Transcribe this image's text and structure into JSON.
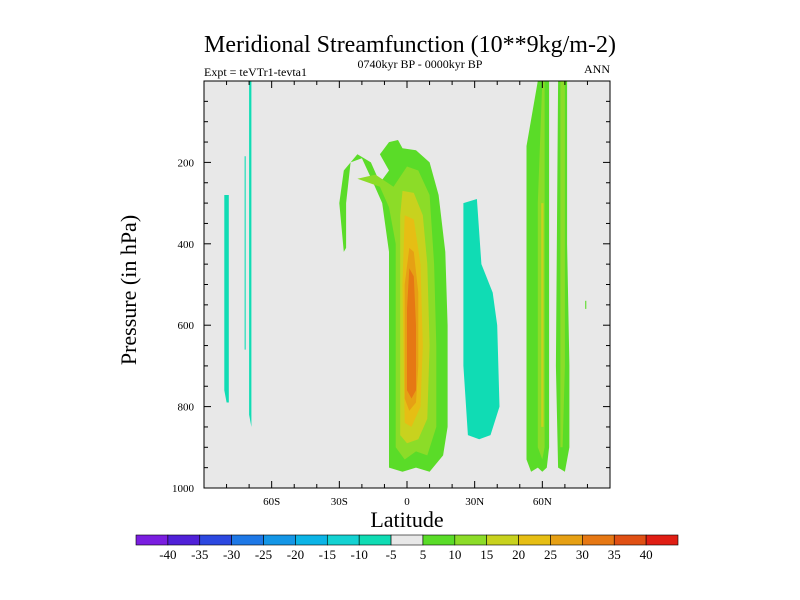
{
  "chart_data": {
    "type": "contour",
    "title": "Meridional Streamfunction (10**9kg/m-2)",
    "left_subtitle": "Expt = teVTr1-tevta1",
    "center_subtitle": "0740kyr BP - 0000kyr BP",
    "right_subtitle": "ANN",
    "xlabel": "Latitude",
    "ylabel": "Pressure (in hPa)",
    "xlim": [
      -90,
      90
    ],
    "ylim": [
      1000,
      0
    ],
    "x_ticks": [
      {
        "value": -60,
        "label": "60S"
      },
      {
        "value": -30,
        "label": "30S"
      },
      {
        "value": 0,
        "label": "0"
      },
      {
        "value": 30,
        "label": "30N"
      },
      {
        "value": 60,
        "label": "60N"
      }
    ],
    "y_ticks": [
      {
        "value": 200,
        "label": "200"
      },
      {
        "value": 400,
        "label": "400"
      },
      {
        "value": 600,
        "label": "600"
      },
      {
        "value": 800,
        "label": "800"
      },
      {
        "value": 1000,
        "label": "1000"
      }
    ],
    "background_color": "#e8e8e8",
    "colorbar": {
      "labels": [
        "-40",
        "-35",
        "-30",
        "-25",
        "-20",
        "-15",
        "-10",
        "-5",
        "5",
        "10",
        "15",
        "20",
        "25",
        "30",
        "35",
        "40"
      ],
      "colors": [
        "#7a1ee0",
        "#5020d8",
        "#2c48e0",
        "#1e78e6",
        "#1496e6",
        "#0cb4e6",
        "#14d2d2",
        "#10dcb4",
        "#e8e8e8",
        "#5adc28",
        "#8cdc28",
        "#c8d21e",
        "#e6be14",
        "#e6a014",
        "#e67814",
        "#e05014",
        "#e01e14"
      ]
    },
    "regions": [
      {
        "name": "minus5-sh-a",
        "band": "-5",
        "points": [
          [
            -81,
            280
          ],
          [
            -79,
            280
          ],
          [
            -79,
            790
          ],
          [
            -80,
            790
          ],
          [
            -81,
            760
          ]
        ]
      },
      {
        "name": "minus5-sh-b",
        "band": "-5",
        "points": [
          [
            -72,
            185
          ],
          [
            -71.5,
            185
          ],
          [
            -71.5,
            660
          ],
          [
            -72,
            660
          ]
        ]
      },
      {
        "name": "minus5-sh-c",
        "band": "-5",
        "points": [
          [
            -70,
            0
          ],
          [
            -69,
            0
          ],
          [
            -69,
            850
          ],
          [
            -70,
            820
          ]
        ]
      },
      {
        "name": "minus5-nh",
        "band": "-5",
        "points": [
          [
            25,
            300
          ],
          [
            31,
            290
          ],
          [
            33,
            450
          ],
          [
            38,
            520
          ],
          [
            40,
            600
          ],
          [
            41,
            800
          ],
          [
            37,
            870
          ],
          [
            32,
            880
          ],
          [
            27,
            870
          ],
          [
            25,
            700
          ]
        ]
      },
      {
        "name": "plus5-nh-spot",
        "band": "5",
        "points": [
          [
            79,
            540
          ],
          [
            79.5,
            540
          ],
          [
            79.5,
            560
          ],
          [
            79,
            560
          ]
        ]
      },
      {
        "name": "plus5-c",
        "band": "5",
        "points": [
          [
            -12,
            250
          ],
          [
            -8,
            220
          ],
          [
            -12,
            180
          ],
          [
            -8,
            150
          ],
          [
            -4,
            145
          ],
          [
            -2,
            165
          ],
          [
            4,
            170
          ],
          [
            10,
            200
          ],
          [
            14,
            280
          ],
          [
            17,
            420
          ],
          [
            18,
            600
          ],
          [
            18,
            850
          ],
          [
            16,
            920
          ],
          [
            10,
            960
          ],
          [
            4,
            950
          ],
          [
            -2,
            960
          ],
          [
            -8,
            950
          ],
          [
            -8,
            850
          ],
          [
            -8,
            600
          ],
          [
            -8,
            420
          ],
          [
            -11,
            300
          ],
          [
            -15,
            250
          ],
          [
            -20,
            190
          ],
          [
            -25,
            200
          ],
          [
            -27,
            300
          ],
          [
            -27,
            410
          ],
          [
            -28,
            420
          ],
          [
            -30,
            300
          ],
          [
            -28,
            220
          ],
          [
            -22,
            180
          ],
          [
            -16,
            200
          ]
        ]
      },
      {
        "name": "plus10-c",
        "band": "10",
        "points": [
          [
            -6,
            260
          ],
          [
            0,
            210
          ],
          [
            5,
            220
          ],
          [
            10,
            280
          ],
          [
            12,
            450
          ],
          [
            13,
            650
          ],
          [
            13,
            850
          ],
          [
            9,
            920
          ],
          [
            4,
            910
          ],
          [
            -1,
            930
          ],
          [
            -5,
            900
          ],
          [
            -5,
            650
          ],
          [
            -5,
            400
          ],
          [
            -8,
            310
          ],
          [
            -12,
            260
          ],
          [
            -17,
            250
          ],
          [
            -22,
            240
          ],
          [
            -14,
            230
          ]
        ]
      },
      {
        "name": "plus15-c",
        "band": "15",
        "points": [
          [
            -2,
            270
          ],
          [
            3,
            275
          ],
          [
            7,
            330
          ],
          [
            9,
            450
          ],
          [
            10,
            650
          ],
          [
            9,
            830
          ],
          [
            5,
            880
          ],
          [
            0,
            890
          ],
          [
            -3,
            870
          ],
          [
            -3,
            500
          ],
          [
            -3,
            330
          ]
        ]
      },
      {
        "name": "plus20-c",
        "band": "20",
        "points": [
          [
            -1,
            330
          ],
          [
            3,
            340
          ],
          [
            6,
            450
          ],
          [
            7,
            650
          ],
          [
            6,
            800
          ],
          [
            2,
            850
          ],
          [
            -1,
            840
          ],
          [
            -2,
            500
          ]
        ]
      },
      {
        "name": "plus25-c",
        "band": "25",
        "points": [
          [
            1,
            410
          ],
          [
            3,
            420
          ],
          [
            5,
            520
          ],
          [
            5,
            700
          ],
          [
            4,
            790
          ],
          [
            1,
            810
          ],
          [
            -1,
            780
          ],
          [
            -1,
            500
          ]
        ]
      },
      {
        "name": "plus30-c",
        "band": "30",
        "points": [
          [
            1,
            460
          ],
          [
            3,
            480
          ],
          [
            4,
            600
          ],
          [
            4,
            760
          ],
          [
            2,
            780
          ],
          [
            0,
            760
          ],
          [
            0,
            560
          ]
        ]
      },
      {
        "name": "plus5-n",
        "band": "5",
        "points": [
          [
            53,
            160
          ],
          [
            55,
            150
          ],
          [
            55,
            900
          ],
          [
            53,
            900
          ]
        ]
      },
      {
        "name": "plus5-n2",
        "band": "5",
        "points": [
          [
            58,
            0
          ],
          [
            60,
            0
          ],
          [
            63,
            0
          ],
          [
            63,
            900
          ],
          [
            62,
            950
          ],
          [
            60,
            960
          ],
          [
            58,
            950
          ],
          [
            55,
            960
          ],
          [
            53,
            930
          ],
          [
            53,
            160
          ]
        ]
      },
      {
        "name": "plus5-n3",
        "band": "5",
        "points": [
          [
            67,
            0
          ],
          [
            71,
            0
          ],
          [
            71,
            400
          ],
          [
            72,
            700
          ],
          [
            72,
            900
          ],
          [
            70,
            960
          ],
          [
            67,
            950
          ],
          [
            66,
            700
          ]
        ]
      },
      {
        "name": "plus10-n",
        "band": "10",
        "points": [
          [
            60,
            0
          ],
          [
            61,
            0
          ],
          [
            61,
            900
          ],
          [
            60,
            930
          ],
          [
            58,
            900
          ],
          [
            58,
            300
          ]
        ]
      },
      {
        "name": "plus10-n2",
        "band": "10",
        "points": [
          [
            68,
            0
          ],
          [
            70,
            0
          ],
          [
            70,
            700
          ],
          [
            69,
            900
          ],
          [
            68,
            900
          ]
        ]
      },
      {
        "name": "plus15-n",
        "band": "15",
        "points": [
          [
            59.5,
            300
          ],
          [
            60.5,
            300
          ],
          [
            60.5,
            850
          ],
          [
            59.5,
            850
          ]
        ]
      }
    ]
  }
}
